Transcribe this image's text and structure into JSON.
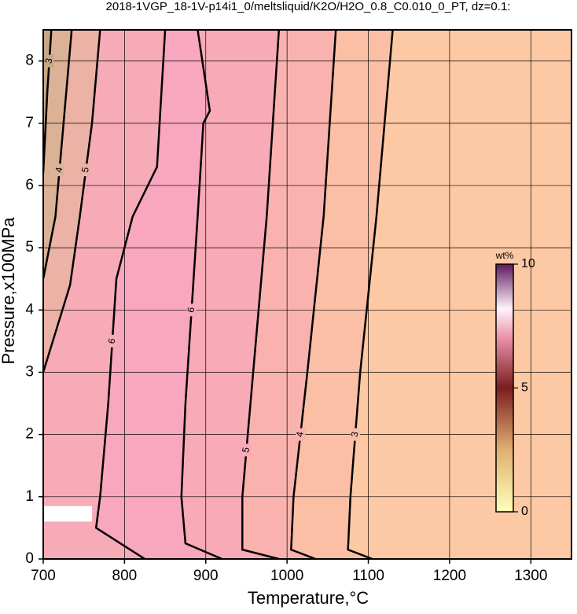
{
  "chart_data": {
    "type": "contour",
    "title": "2018-1VGP_18-1V-p14i1_0/meltsliquid/K2O/H2O_0.8_C0.010_0_PT, dz=0.1:",
    "x_label": "Temperature,°C",
    "y_label": "Pressure,x100MPa",
    "xlim": [
      700,
      1350
    ],
    "ylim": [
      0,
      8.5
    ],
    "xticks": [
      700,
      800,
      900,
      1000,
      1100,
      1200,
      1300
    ],
    "yticks": [
      0,
      1,
      2,
      3,
      4,
      5,
      6,
      7,
      8
    ],
    "grid": true,
    "background": "#fdc9a4",
    "contours": [
      {
        "level": 3,
        "color": "#fbbfa6",
        "x": [
          1105,
          1075,
          1078,
          1090,
          1110,
          1130
        ],
        "y": [
          0,
          0.15,
          1,
          3,
          5.5,
          8.5
        ]
      },
      {
        "level": 4,
        "color": "#f9b2ae",
        "x": [
          1035,
          1005,
          1008,
          1025,
          1045,
          1060
        ],
        "y": [
          0,
          0.15,
          1,
          3,
          5.5,
          8.5
        ]
      },
      {
        "level": 5,
        "color": "#f8aab6",
        "x": [
          990,
          945,
          945,
          955,
          975,
          990
        ],
        "y": [
          0,
          0.15,
          1,
          2.5,
          5.5,
          8.5
        ]
      },
      {
        "level": 6,
        "color": "#f9a6bf",
        "x": [
          920,
          875,
          870,
          875,
          890,
          897,
          905,
          890
        ],
        "y": [
          0,
          0.25,
          1,
          2.5,
          5.5,
          7.0,
          7.2,
          8.5
        ]
      },
      {
        "level": 6,
        "color": "#f6abb7",
        "x": [
          825,
          765,
          770,
          780,
          790,
          810,
          840,
          850
        ],
        "y": [
          0,
          0.5,
          1,
          2.5,
          4.5,
          5.5,
          6.3,
          8.5
        ]
      },
      {
        "level": 5,
        "color": "#ecb2a6",
        "x": [
          700,
          733,
          745,
          760,
          770
        ],
        "y": [
          3.0,
          4.4,
          5.5,
          7,
          8.5
        ]
      },
      {
        "level": 4,
        "color": "#dcb296",
        "x": [
          700,
          715,
          725,
          735
        ],
        "y": [
          4.5,
          5.5,
          7,
          8.5
        ]
      },
      {
        "level": 3,
        "color": "#c9a885",
        "x": [
          700,
          705,
          710
        ],
        "y": [
          6.2,
          7.5,
          8.5
        ]
      }
    ],
    "colorbar": {
      "label": "wt%",
      "lim": [
        0,
        10
      ],
      "ticks": [
        0,
        5,
        10
      ]
    }
  }
}
